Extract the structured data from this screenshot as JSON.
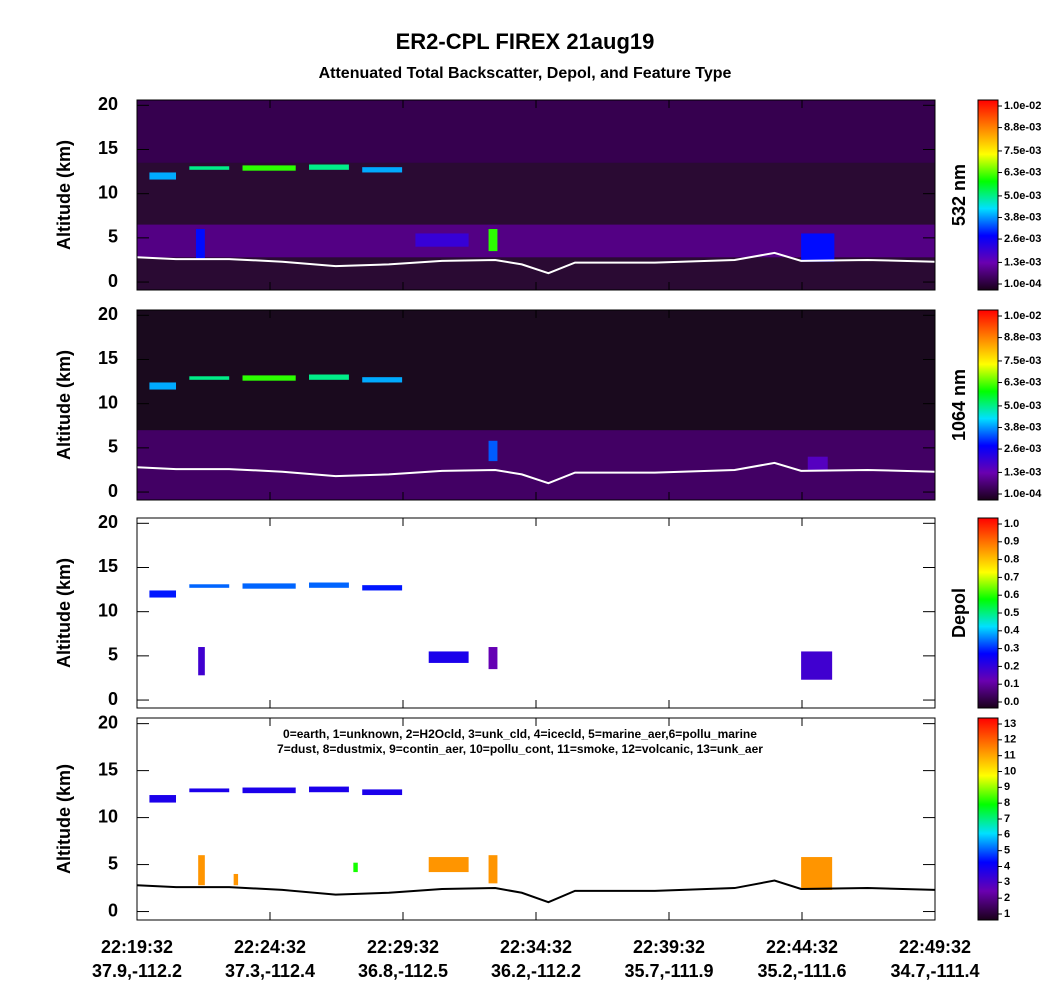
{
  "title": "ER2-CPL FIREX 21aug19",
  "subtitle": "Attenuated Total Backscatter, Depol, and Feature Type",
  "chart_data": [
    {
      "type": "curtain",
      "ylabel": "Altitude (km)",
      "colorbar_label": "532 nm",
      "background": "#2a0a33",
      "xlim": [
        "22:19:32",
        "22:49:32"
      ],
      "ylim": [
        -0.9,
        20.6
      ],
      "yticks": [
        0,
        5,
        10,
        15,
        20
      ],
      "colormap": [
        "#1a001a",
        "#6a00b0",
        "#0000ff",
        "#00e0ff",
        "#00ff00",
        "#ffff00",
        "#ff8000",
        "#ff0000"
      ],
      "colorlim": [
        0.0001,
        0.01
      ],
      "colorticks": [
        {
          "value": 0.0001,
          "label": "1.0e-04"
        },
        {
          "value": 0.0013,
          "label": "1.3e-03"
        },
        {
          "value": 0.0026,
          "label": "2.6e-03"
        },
        {
          "value": 0.0038,
          "label": "3.8e-03"
        },
        {
          "value": 0.005,
          "label": "5.0e-03"
        },
        {
          "value": 0.0063,
          "label": "6.3e-03"
        },
        {
          "value": 0.0075,
          "label": "7.5e-03"
        },
        {
          "value": 0.0088,
          "label": "8.8e-03"
        },
        {
          "value": 0.01,
          "label": "1.0e-02"
        }
      ],
      "features": [
        {
          "x": [
            "22:19:32",
            "22:49:32"
          ],
          "y": [
            2.8,
            6.5
          ],
          "value": 0.0011
        },
        {
          "x": [
            "22:19:32",
            "22:49:32"
          ],
          "y": [
            13.5,
            20.6
          ],
          "value": 0.0006
        },
        {
          "x": [
            "22:20:00",
            "22:21:00"
          ],
          "y": [
            11.6,
            12.4
          ],
          "value": 0.004
        },
        {
          "x": [
            "22:21:30",
            "22:23:00"
          ],
          "y": [
            12.7,
            13.1
          ],
          "value": 0.005
        },
        {
          "x": [
            "22:23:30",
            "22:25:30"
          ],
          "y": [
            12.6,
            13.2
          ],
          "value": 0.006
        },
        {
          "x": [
            "22:26:00",
            "22:27:30"
          ],
          "y": [
            12.7,
            13.3
          ],
          "value": 0.005
        },
        {
          "x": [
            "22:28:00",
            "22:29:30"
          ],
          "y": [
            12.4,
            13.0
          ],
          "value": 0.004
        },
        {
          "x": [
            "22:21:45",
            "22:22:05"
          ],
          "y": [
            2.6,
            6.0
          ],
          "value": 0.003
        },
        {
          "x": [
            "22:30:00",
            "22:32:00"
          ],
          "y": [
            4.0,
            5.5
          ],
          "value": 0.0022
        },
        {
          "x": [
            "22:32:45",
            "22:33:05"
          ],
          "y": [
            3.5,
            6.0
          ],
          "value": 0.006
        },
        {
          "x": [
            "22:44:30",
            "22:45:45"
          ],
          "y": [
            2.3,
            5.5
          ],
          "value": 0.003
        }
      ],
      "surface": {
        "color": "#ffffff",
        "x": [
          "22:19:32",
          "22:21:00",
          "22:23:00",
          "22:25:00",
          "22:27:00",
          "22:29:00",
          "22:31:00",
          "22:33:00",
          "22:34:00",
          "22:35:00",
          "22:36:00",
          "22:39:00",
          "22:42:00",
          "22:43:30",
          "22:44:30",
          "22:47:00",
          "22:49:32"
        ],
        "values": [
          2.8,
          2.6,
          2.6,
          2.3,
          1.8,
          2.0,
          2.4,
          2.5,
          2.0,
          1.0,
          2.2,
          2.2,
          2.5,
          3.3,
          2.4,
          2.5,
          2.3
        ]
      }
    },
    {
      "type": "curtain",
      "ylabel": "Altitude (km)",
      "colorbar_label": "1064 nm",
      "background": "#1a0a1e",
      "xlim": [
        "22:19:32",
        "22:49:32"
      ],
      "ylim": [
        -0.9,
        20.6
      ],
      "yticks": [
        0,
        5,
        10,
        15,
        20
      ],
      "colormap": [
        "#1a001a",
        "#6a00b0",
        "#0000ff",
        "#00e0ff",
        "#00ff00",
        "#ffff00",
        "#ff8000",
        "#ff0000"
      ],
      "colorlim": [
        0.0001,
        0.01
      ],
      "colorticks": [
        {
          "value": 0.0001,
          "label": "1.0e-04"
        },
        {
          "value": 0.0013,
          "label": "1.3e-03"
        },
        {
          "value": 0.0026,
          "label": "2.6e-03"
        },
        {
          "value": 0.0038,
          "label": "3.8e-03"
        },
        {
          "value": 0.005,
          "label": "5.0e-03"
        },
        {
          "value": 0.0063,
          "label": "6.3e-03"
        },
        {
          "value": 0.0075,
          "label": "7.5e-03"
        },
        {
          "value": 0.0088,
          "label": "8.8e-03"
        },
        {
          "value": 0.01,
          "label": "1.0e-02"
        }
      ],
      "features": [
        {
          "x": [
            "22:19:32",
            "22:49:32"
          ],
          "y": [
            -0.9,
            7.0
          ],
          "value": 0.0008
        },
        {
          "x": [
            "22:20:00",
            "22:21:00"
          ],
          "y": [
            11.6,
            12.4
          ],
          "value": 0.004
        },
        {
          "x": [
            "22:21:30",
            "22:23:00"
          ],
          "y": [
            12.7,
            13.1
          ],
          "value": 0.005
        },
        {
          "x": [
            "22:23:30",
            "22:25:30"
          ],
          "y": [
            12.6,
            13.2
          ],
          "value": 0.006
        },
        {
          "x": [
            "22:26:00",
            "22:27:30"
          ],
          "y": [
            12.7,
            13.3
          ],
          "value": 0.005
        },
        {
          "x": [
            "22:28:00",
            "22:29:30"
          ],
          "y": [
            12.4,
            13.0
          ],
          "value": 0.004
        },
        {
          "x": [
            "22:32:45",
            "22:33:05"
          ],
          "y": [
            3.5,
            5.8
          ],
          "value": 0.0035
        },
        {
          "x": [
            "22:44:45",
            "22:45:30"
          ],
          "y": [
            2.5,
            4.0
          ],
          "value": 0.0018
        }
      ],
      "surface": {
        "color": "#ffffff",
        "x": [
          "22:19:32",
          "22:21:00",
          "22:23:00",
          "22:25:00",
          "22:27:00",
          "22:29:00",
          "22:31:00",
          "22:33:00",
          "22:34:00",
          "22:35:00",
          "22:36:00",
          "22:39:00",
          "22:42:00",
          "22:43:30",
          "22:44:30",
          "22:47:00",
          "22:49:32"
        ],
        "values": [
          2.8,
          2.6,
          2.6,
          2.3,
          1.8,
          2.0,
          2.4,
          2.5,
          2.0,
          1.0,
          2.2,
          2.2,
          2.5,
          3.3,
          2.4,
          2.5,
          2.3
        ]
      }
    },
    {
      "type": "curtain",
      "ylabel": "Altitude (km)",
      "colorbar_label": "Depol",
      "background": "#ffffff",
      "xlim": [
        "22:19:32",
        "22:49:32"
      ],
      "ylim": [
        -0.9,
        20.6
      ],
      "yticks": [
        0,
        5,
        10,
        15,
        20
      ],
      "colormap": [
        "#1a001a",
        "#6a00b0",
        "#0000ff",
        "#00e0ff",
        "#00ff00",
        "#ffff00",
        "#ff8000",
        "#ff0000"
      ],
      "colorlim": [
        0,
        1
      ],
      "colorticks": [
        {
          "value": 0,
          "label": "0.0"
        },
        0.1,
        0.2,
        0.3,
        0.4,
        0.5,
        0.6,
        0.7,
        0.8,
        0.9,
        {
          "value": 1,
          "label": "1.0"
        }
      ],
      "features": [
        {
          "x": [
            "22:20:00",
            "22:21:00"
          ],
          "y": [
            11.6,
            12.4
          ],
          "value": 0.3
        },
        {
          "x": [
            "22:21:30",
            "22:23:00"
          ],
          "y": [
            12.7,
            13.1
          ],
          "value": 0.35
        },
        {
          "x": [
            "22:23:30",
            "22:25:30"
          ],
          "y": [
            12.6,
            13.2
          ],
          "value": 0.35
        },
        {
          "x": [
            "22:26:00",
            "22:27:30"
          ],
          "y": [
            12.7,
            13.3
          ],
          "value": 0.35
        },
        {
          "x": [
            "22:28:00",
            "22:29:30"
          ],
          "y": [
            12.4,
            13.0
          ],
          "value": 0.3
        },
        {
          "x": [
            "22:21:50",
            "22:22:05"
          ],
          "y": [
            2.8,
            6.0
          ],
          "value": 0.2
        },
        {
          "x": [
            "22:30:30",
            "22:32:00"
          ],
          "y": [
            4.2,
            5.5
          ],
          "value": 0.25
        },
        {
          "x": [
            "22:32:45",
            "22:33:05"
          ],
          "y": [
            3.5,
            6.0
          ],
          "value": 0.15
        },
        {
          "x": [
            "22:44:30",
            "22:45:40"
          ],
          "y": [
            2.3,
            5.5
          ],
          "value": 0.2
        }
      ]
    },
    {
      "type": "curtain",
      "ylabel": "Altitude (km)",
      "background": "#ffffff",
      "legend_text": [
        "0=earth, 1=unknown, 2=H2Ocld, 3=unk_cld, 4=icecld, 5=marine_aer,6=pollu_marine",
        "7=dust, 8=dustmix, 9=contin_aer, 10=pollu_cont, 11=smoke, 12=volcanic, 13=unk_aer"
      ],
      "xlim": [
        "22:19:32",
        "22:49:32"
      ],
      "ylim": [
        -0.9,
        20.6
      ],
      "yticks": [
        0,
        5,
        10,
        15,
        20
      ],
      "xticks": [
        "22:19:32",
        "22:24:32",
        "22:29:32",
        "22:34:32",
        "22:39:32",
        "22:44:32",
        "22:49:32"
      ],
      "xtick_coords": [
        "37.9,-112.2",
        "37.3,-112.4",
        "36.8,-112.5",
        "36.2,-112.2",
        "35.7,-111.9",
        "35.2,-111.6",
        "34.7,-111.4"
      ],
      "colormap": [
        "#1a001a",
        "#6a00b0",
        "#0000ff",
        "#00e0ff",
        "#00ff00",
        "#ffff00",
        "#ff8000",
        "#ff0000"
      ],
      "colorlim": [
        1,
        13
      ],
      "colorticks": [
        1,
        2,
        3,
        4,
        5,
        6,
        7,
        8,
        9,
        10,
        11,
        12,
        13
      ],
      "features": [
        {
          "x": [
            "22:20:00",
            "22:21:00"
          ],
          "y": [
            11.6,
            12.4
          ],
          "value": 4
        },
        {
          "x": [
            "22:21:30",
            "22:23:00"
          ],
          "y": [
            12.7,
            13.1
          ],
          "value": 4
        },
        {
          "x": [
            "22:23:30",
            "22:25:30"
          ],
          "y": [
            12.6,
            13.2
          ],
          "value": 4
        },
        {
          "x": [
            "22:26:00",
            "22:27:30"
          ],
          "y": [
            12.7,
            13.3
          ],
          "value": 4
        },
        {
          "x": [
            "22:28:00",
            "22:29:30"
          ],
          "y": [
            12.4,
            13.0
          ],
          "value": 4
        },
        {
          "x": [
            "22:21:50",
            "22:22:05"
          ],
          "y": [
            2.8,
            6.0
          ],
          "value": 11
        },
        {
          "x": [
            "22:23:10",
            "22:23:20"
          ],
          "y": [
            2.8,
            4.0
          ],
          "value": 11
        },
        {
          "x": [
            "22:27:40",
            "22:27:50"
          ],
          "y": [
            4.2,
            5.2
          ],
          "value": 8
        },
        {
          "x": [
            "22:30:30",
            "22:32:00"
          ],
          "y": [
            4.2,
            5.8
          ],
          "value": 11
        },
        {
          "x": [
            "22:32:45",
            "22:33:05"
          ],
          "y": [
            3.0,
            6.0
          ],
          "value": 11
        },
        {
          "x": [
            "22:44:30",
            "22:45:40"
          ],
          "y": [
            2.3,
            5.8
          ],
          "value": 11
        }
      ],
      "surface": {
        "color": "#000000",
        "x": [
          "22:19:32",
          "22:21:00",
          "22:23:00",
          "22:25:00",
          "22:27:00",
          "22:29:00",
          "22:31:00",
          "22:33:00",
          "22:34:00",
          "22:35:00",
          "22:36:00",
          "22:39:00",
          "22:42:00",
          "22:43:30",
          "22:44:30",
          "22:47:00",
          "22:49:32"
        ],
        "values": [
          2.8,
          2.6,
          2.6,
          2.3,
          1.8,
          2.0,
          2.4,
          2.5,
          2.0,
          1.0,
          2.2,
          2.2,
          2.5,
          3.3,
          2.4,
          2.5,
          2.3
        ]
      }
    }
  ]
}
